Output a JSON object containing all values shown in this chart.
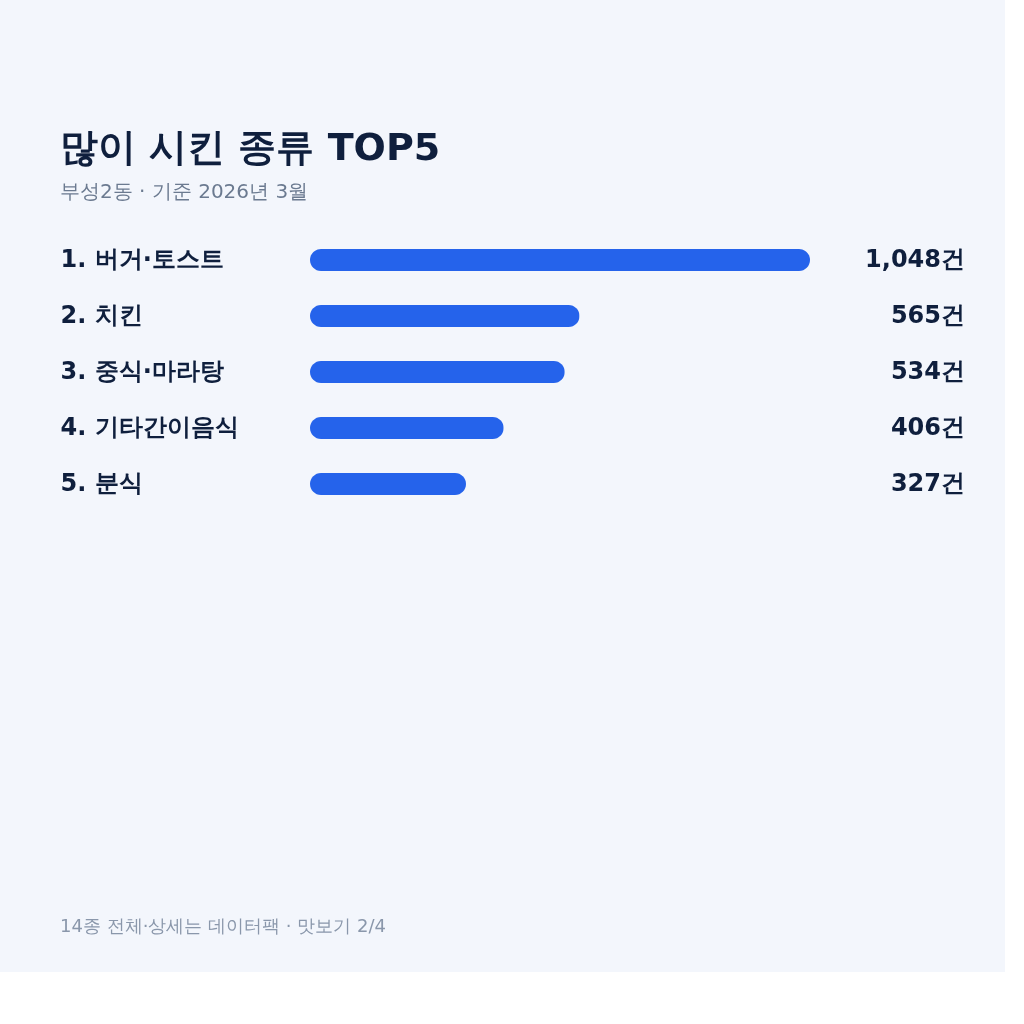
{
  "chart_data": {
    "type": "bar",
    "orientation": "horizontal",
    "title": "많이 시킨 종류 TOP5",
    "subtitle": "부성2동 · 기준 2026년 3월",
    "categories": [
      "1. 버거·토스트",
      "2. 치킨",
      "3. 중식·마라탕",
      "4. 기타간이음식",
      "5. 분식"
    ],
    "values": [
      1048,
      565,
      534,
      406,
      327
    ],
    "value_labels": [
      "1,048건",
      "565건",
      "534건",
      "406건",
      "327건"
    ],
    "color": "#2563eb",
    "annotations": [
      "14종 전체·상세는 데이터팩 · 맛보기 2/4"
    ]
  }
}
